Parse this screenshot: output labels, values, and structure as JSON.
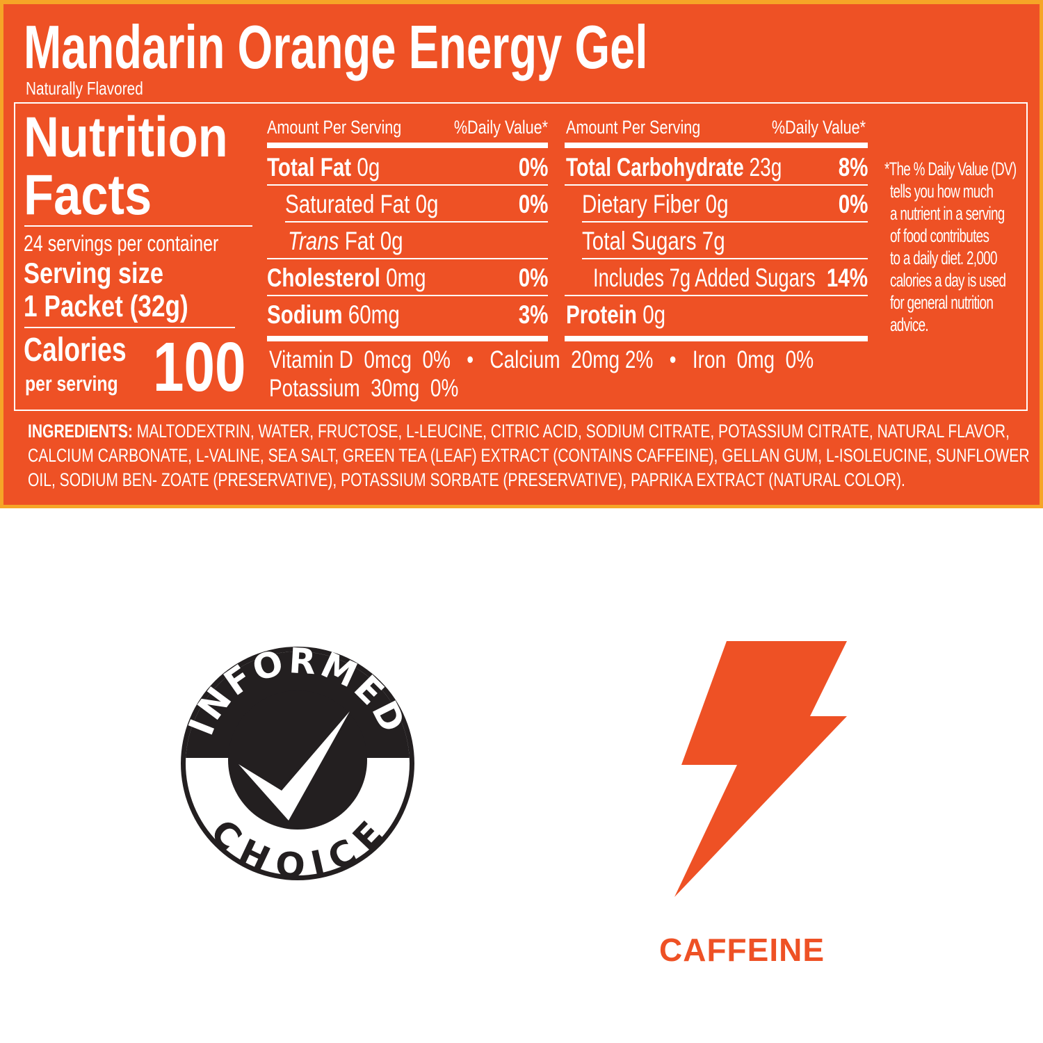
{
  "colors": {
    "panel": "#ee5125",
    "border": "#f6a527",
    "text": "#ffffff",
    "logo": "#231f20",
    "caffeine": "#ee5125"
  },
  "product": {
    "title": "Mandarin Orange Energy Gel",
    "subtitle": "Naturally Flavored"
  },
  "facts": {
    "heading1": "Nutrition",
    "heading2": "Facts",
    "servings": "24 servings per container",
    "serving_size_label": "Serving size",
    "serving_size": "1 Packet (32g)",
    "calories_label": "Calories",
    "per_serving": "per serving",
    "calories": "100"
  },
  "columns": [
    {
      "header_amount": "Amount Per Serving",
      "header_dv": "%Daily Value*",
      "rows": [
        {
          "name": "Total Fat",
          "amount": "0g",
          "dv": "0%"
        },
        {
          "name": "Saturated Fat",
          "amount": "0g",
          "dv": "0%"
        },
        {
          "name": "Trans",
          "name2": "Fat",
          "amount": "0g",
          "dv": ""
        },
        {
          "name": "Cholesterol",
          "amount": "0mg",
          "dv": "0%"
        },
        {
          "name": "Sodium",
          "amount": "60mg",
          "dv": "3%"
        }
      ]
    },
    {
      "header_amount": "Amount Per Serving",
      "header_dv": "%Daily Value*",
      "rows": [
        {
          "name": "Total Carbohydrate",
          "amount": "23g",
          "dv": "8%"
        },
        {
          "name": "Dietary Fiber",
          "amount": "0g",
          "dv": "0%"
        },
        {
          "name": "Total Sugars",
          "amount": "7g",
          "dv": ""
        },
        {
          "name": "Includes 7g Added Sugars",
          "amount": "",
          "dv": "14%"
        },
        {
          "name": "Protein",
          "amount": "0g",
          "dv": ""
        }
      ]
    }
  ],
  "vitamins": {
    "line1": "Vitamin D  0mcg  0%   •   Calcium  20mg 2%   •   Iron  0mg  0%",
    "line2": "Potassium  30mg  0%"
  },
  "footnote": [
    "*The % Daily Value (DV)",
    "tells you how much",
    "a nutrient in a serving",
    "of food contributes",
    "to a daily diet. 2,000",
    "calories a day is used",
    "for general nutrition",
    "advice."
  ],
  "ingredients": {
    "label": "INGREDIENTS:",
    "lines": [
      " MALTODEXTRIN, WATER, FRUCTOSE, L-LEUCINE, CITRIC ACID, SODIUM CITRATE, POTASSIUM CITRATE, NATURAL FLAVOR,",
      "CALCIUM CARBONATE, L-VALINE, SEA SALT, GREEN TEA (LEAF) EXTRACT (CONTAINS CAFFEINE), GELLAN GUM, L-ISOLEUCINE, SUNFLOWER",
      "OIL, SODIUM BEN- ZOATE (PRESERVATIVE), POTASSIUM SORBATE (PRESERVATIVE), PAPRIKA EXTRACT (NATURAL COLOR)."
    ]
  },
  "badges": {
    "informed_top": "INFORMED",
    "informed_bottom": "CHOICE",
    "caffeine": "CAFFEINE",
    "icons": [
      "informed-choice-logo",
      "lightning-bolt-icon"
    ]
  }
}
